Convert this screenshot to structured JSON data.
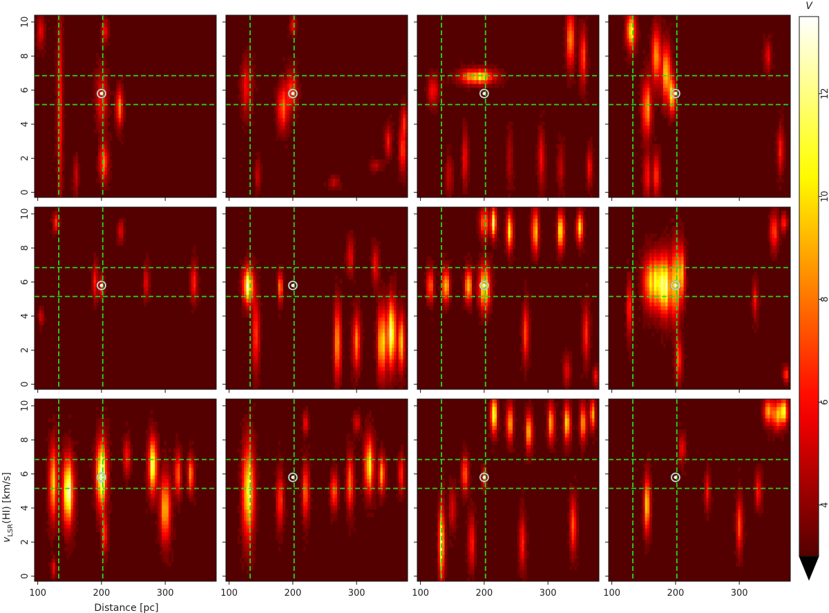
{
  "chart_data": {
    "type": "heatmap",
    "layout": {
      "rows": 3,
      "cols": 4
    },
    "xlabel": "Distance [pc]",
    "ylabel_main": "v",
    "ylabel_sub": "LSR",
    "ylabel_rest": "(HI) [km/s]",
    "xlim": [
      95,
      380
    ],
    "ylim": [
      -0.3,
      10.4
    ],
    "xticks": [
      100,
      200,
      300
    ],
    "xtick_labels": [
      "100",
      "200",
      "300"
    ],
    "yticks": [
      0,
      2,
      4,
      6,
      8,
      10
    ],
    "ytick_labels": [
      "0",
      "2",
      "4",
      "6",
      "8",
      "10"
    ],
    "reference_lines": {
      "x": [
        133,
        202
      ],
      "y": [
        5.15,
        6.85
      ],
      "style": "dashed",
      "color": "#22dd22"
    },
    "marker": {
      "x": 200,
      "y": 5.8,
      "shape": "double-circle"
    },
    "colorbar": {
      "label": "V",
      "ticks": [
        4,
        6,
        8,
        10,
        12
      ],
      "tick_labels": [
        "4",
        "6",
        "8",
        "10",
        "12"
      ],
      "range": [
        3,
        13.5
      ],
      "colormap": "hot",
      "extend": "min"
    },
    "panels": [
      {
        "features": [
          [
            105,
            9.5,
            0.6,
            0.9,
            6
          ],
          [
            135,
            5,
            0.5,
            5,
            6.5
          ],
          [
            160,
            1,
            0.5,
            1,
            5
          ],
          [
            200,
            5.5,
            1,
            1.5,
            6.5
          ],
          [
            203,
            1.8,
            0.8,
            1,
            8
          ],
          [
            228,
            5,
            0.6,
            1,
            9
          ],
          [
            205,
            9.5,
            0.6,
            0.6,
            6
          ]
        ]
      },
      {
        "features": [
          [
            128,
            6.2,
            1,
            1.5,
            6
          ],
          [
            145,
            1,
            0.5,
            0.8,
            5
          ],
          [
            185,
            5,
            1,
            1.2,
            8
          ],
          [
            198,
            6,
            1,
            1,
            7
          ],
          [
            200,
            9.8,
            0.5,
            0.5,
            6
          ],
          [
            265,
            0.6,
            1,
            0.3,
            5
          ],
          [
            330,
            1.6,
            1,
            0.3,
            5
          ],
          [
            350,
            3,
            0.6,
            0.8,
            6
          ],
          [
            372,
            2.5,
            0.6,
            1.2,
            7
          ],
          [
            375,
            4.2,
            0.6,
            0.8,
            6
          ]
        ]
      },
      {
        "features": [
          [
            190,
            6.8,
            3,
            0.4,
            11
          ],
          [
            120,
            6,
            1,
            0.8,
            6
          ],
          [
            145,
            1,
            0.6,
            1,
            5
          ],
          [
            170,
            2,
            0.5,
            1.5,
            6
          ],
          [
            240,
            2,
            0.5,
            1.5,
            5
          ],
          [
            290,
            2,
            0.6,
            1.5,
            6
          ],
          [
            320,
            1.5,
            0.6,
            1.2,
            5
          ],
          [
            335,
            9,
            0.7,
            1.5,
            9
          ],
          [
            355,
            8,
            0.6,
            1.5,
            8
          ],
          [
            365,
            1.5,
            0.5,
            1,
            6
          ]
        ]
      },
      {
        "features": [
          [
            130,
            9.5,
            0.8,
            1,
            12
          ],
          [
            155,
            5,
            0.8,
            1.5,
            10
          ],
          [
            170,
            8,
            0.8,
            1.5,
            9
          ],
          [
            185,
            7,
            0.8,
            1.5,
            11
          ],
          [
            195,
            5.7,
            0.6,
            1,
            10
          ],
          [
            155,
            1,
            0.6,
            1.2,
            7
          ],
          [
            170,
            1,
            0.6,
            1.2,
            7
          ],
          [
            345,
            8,
            0.6,
            0.8,
            6
          ],
          [
            365,
            2.5,
            0.6,
            1.2,
            6
          ]
        ]
      },
      {
        "features": [
          [
            128,
            9.5,
            0.5,
            0.5,
            7
          ],
          [
            190,
            6,
            0.5,
            1,
            6
          ],
          [
            200,
            5.7,
            0.4,
            0.6,
            7
          ],
          [
            230,
            9,
            0.5,
            0.6,
            6
          ],
          [
            270,
            6,
            0.5,
            0.8,
            6
          ],
          [
            345,
            6,
            0.6,
            1,
            7
          ],
          [
            105,
            4,
            0.5,
            0.5,
            5
          ]
        ]
      },
      {
        "features": [
          [
            130,
            5.8,
            1,
            1,
            12
          ],
          [
            142,
            3,
            0.6,
            2,
            8
          ],
          [
            180,
            5.7,
            0.4,
            0.8,
            9
          ],
          [
            270,
            2.5,
            0.6,
            2,
            9
          ],
          [
            300,
            2.5,
            0.7,
            1.5,
            8
          ],
          [
            340,
            2.5,
            0.8,
            1.8,
            12
          ],
          [
            355,
            3,
            0.8,
            1.8,
            12
          ],
          [
            370,
            2.5,
            0.6,
            1.5,
            11
          ],
          [
            330,
            7,
            0.6,
            1,
            6
          ],
          [
            290,
            7.5,
            0.6,
            1,
            6
          ]
        ]
      },
      {
        "features": [
          [
            115,
            5.8,
            0.6,
            0.9,
            9
          ],
          [
            140,
            5.8,
            0.6,
            0.9,
            12
          ],
          [
            175,
            5.8,
            0.6,
            0.9,
            11
          ],
          [
            200,
            5.7,
            1,
            1.2,
            12
          ],
          [
            215,
            9.5,
            0.5,
            0.8,
            12
          ],
          [
            200,
            9.5,
            0.8,
            0.8,
            9
          ],
          [
            240,
            9,
            0.6,
            1,
            10
          ],
          [
            280,
            9,
            0.6,
            1.2,
            11
          ],
          [
            320,
            9,
            0.6,
            1,
            11
          ],
          [
            350,
            9.2,
            0.6,
            0.8,
            10
          ],
          [
            265,
            3,
            0.6,
            1.5,
            7
          ],
          [
            360,
            3,
            0.6,
            1.5,
            7
          ],
          [
            330,
            0.8,
            0.6,
            0.8,
            6
          ],
          [
            375,
            0.5,
            0.5,
            0.5,
            6
          ]
        ]
      },
      {
        "features": [
          [
            165,
            6,
            1.6,
            1.4,
            12
          ],
          [
            185,
            5.8,
            1.2,
            1.6,
            12
          ],
          [
            200,
            6,
            0.8,
            2,
            10
          ],
          [
            210,
            6.5,
            0.6,
            1.5,
            9
          ],
          [
            128,
            4.5,
            0.5,
            1.5,
            7
          ],
          [
            205,
            1.5,
            0.6,
            1.2,
            7
          ],
          [
            355,
            9,
            0.7,
            1,
            8
          ],
          [
            370,
            9.5,
            0.5,
            0.5,
            7
          ],
          [
            325,
            5,
            0.5,
            1,
            6
          ],
          [
            373,
            0.6,
            0.5,
            0.4,
            7
          ]
        ]
      },
      {
        "features": [
          [
            125,
            5.5,
            0.8,
            2,
            10
          ],
          [
            148,
            5,
            1,
            1.8,
            13
          ],
          [
            200,
            6,
            1,
            1.8,
            13
          ],
          [
            205,
            2.5,
            0.5,
            1,
            7
          ],
          [
            280,
            6.5,
            0.8,
            1.5,
            12
          ],
          [
            300,
            4,
            0.9,
            1.8,
            11
          ],
          [
            320,
            6,
            0.6,
            1.2,
            8
          ],
          [
            340,
            6,
            0.6,
            1,
            8
          ],
          [
            240,
            7,
            0.6,
            1,
            7
          ],
          [
            125,
            0.5,
            0.4,
            0.5,
            6
          ]
        ]
      },
      {
        "features": [
          [
            130,
            5,
            1,
            2.5,
            13
          ],
          [
            180,
            4.5,
            0.6,
            1.5,
            8
          ],
          [
            220,
            5,
            0.6,
            1.5,
            8
          ],
          [
            265,
            5,
            0.6,
            1,
            9
          ],
          [
            290,
            5.5,
            0.6,
            1.5,
            9
          ],
          [
            320,
            6.5,
            0.8,
            1.5,
            12
          ],
          [
            340,
            6,
            0.6,
            1,
            9
          ],
          [
            370,
            6,
            0.5,
            1,
            7
          ],
          [
            220,
            9,
            0.5,
            0.6,
            6
          ],
          [
            300,
            9,
            0.6,
            0.5,
            6
          ]
        ]
      },
      {
        "features": [
          [
            133,
            2,
            0.5,
            2,
            12
          ],
          [
            170,
            6,
            0.6,
            1,
            8
          ],
          [
            200,
            5.8,
            0.4,
            0.5,
            8
          ],
          [
            215,
            9.5,
            0.6,
            1,
            12
          ],
          [
            240,
            9,
            0.6,
            1,
            10
          ],
          [
            270,
            8.5,
            0.6,
            1,
            10
          ],
          [
            305,
            9,
            0.6,
            1,
            9
          ],
          [
            330,
            9,
            0.6,
            1,
            10
          ],
          [
            355,
            9,
            0.6,
            1,
            9
          ],
          [
            370,
            9.5,
            0.5,
            0.8,
            10
          ],
          [
            180,
            2,
            0.6,
            1.5,
            7
          ],
          [
            260,
            2,
            0.6,
            1.5,
            7
          ],
          [
            340,
            3,
            0.6,
            1.5,
            8
          ],
          [
            150,
            4,
            0.6,
            1.2,
            6
          ]
        ]
      },
      {
        "features": [
          [
            155,
            4.2,
            0.6,
            1.5,
            10
          ],
          [
            210,
            7.5,
            0.6,
            0.8,
            6
          ],
          [
            300,
            3,
            0.6,
            1.5,
            7
          ],
          [
            345,
            9.7,
            0.8,
            0.7,
            10
          ],
          [
            370,
            9.7,
            0.7,
            0.7,
            12
          ],
          [
            360,
            9.5,
            1,
            0.8,
            9
          ],
          [
            330,
            5,
            0.6,
            1,
            6
          ],
          [
            250,
            5,
            0.5,
            1,
            6
          ]
        ]
      }
    ]
  }
}
